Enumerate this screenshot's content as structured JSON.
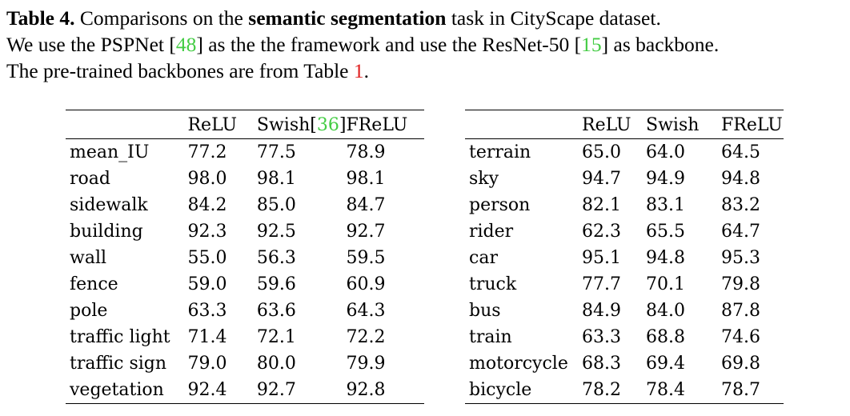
{
  "caption": {
    "label": "Table 4.",
    "line1_a": " Comparisons on the ",
    "line1_bold": "semantic segmentation",
    "line1_b": " task in CityScape dataset.",
    "line2_a": "We use the PSPNet [",
    "line2_ref1": "48",
    "line2_b": "] as the the framework and use the ResNet-50 [",
    "line2_ref2": "15",
    "line2_c": "] as backbone.",
    "line3_a": "The pre-trained backbones are from Table ",
    "line3_ref": "1",
    "line3_b": "."
  },
  "left_table": {
    "headers": [
      "",
      "ReLU",
      "Swish[",
      "36",
      "]",
      "FReLU"
    ],
    "rows": [
      {
        "label": "mean_IU",
        "relu": "77.2",
        "swish": "77.5",
        "frelu": "78.9",
        "frelu_bold": true
      },
      {
        "label": "road",
        "relu": "98.0",
        "swish": "98.1",
        "frelu": "98.1"
      },
      {
        "label": "sidewalk",
        "relu": "84.2",
        "swish": "85.0",
        "frelu": "84.7"
      },
      {
        "label": "building",
        "relu": "92.3",
        "swish": "92.5",
        "frelu": "92.7"
      },
      {
        "label": "wall",
        "relu": "55.0",
        "swish": "56.3",
        "frelu": "59.5"
      },
      {
        "label": "fence",
        "relu": "59.0",
        "swish": "59.6",
        "frelu": "60.9"
      },
      {
        "label": "pole",
        "relu": "63.3",
        "swish": "63.6",
        "frelu": "64.3"
      },
      {
        "label": "traffic light",
        "relu": "71.4",
        "swish": "72.1",
        "frelu": "72.2"
      },
      {
        "label": "traffic sign",
        "relu": "79.0",
        "swish": "80.0",
        "frelu": "79.9"
      },
      {
        "label": "vegetation",
        "relu": "92.4",
        "swish": "92.7",
        "frelu": "92.8"
      }
    ]
  },
  "right_table": {
    "headers": [
      "",
      "ReLU",
      "Swish",
      "FReLU"
    ],
    "rows": [
      {
        "label": "terrain",
        "relu": "65.0",
        "swish": "64.0",
        "frelu": "64.5"
      },
      {
        "label": "sky",
        "relu": "94.7",
        "swish": "94.9",
        "frelu": "94.8"
      },
      {
        "label": "person",
        "relu": "82.1",
        "swish": "83.1",
        "frelu": "83.2"
      },
      {
        "label": "rider",
        "relu": "62.3",
        "swish": "65.5",
        "frelu": "64.7"
      },
      {
        "label": "car",
        "relu": "95.1",
        "swish": "94.8",
        "frelu": "95.3"
      },
      {
        "label": "truck",
        "relu": "77.7",
        "swish": "70.1",
        "frelu": "79.8"
      },
      {
        "label": "bus",
        "relu": "84.9",
        "swish": "84.0",
        "frelu": "87.8"
      },
      {
        "label": "train",
        "relu": "63.3",
        "swish": "68.8",
        "frelu": "74.6"
      },
      {
        "label": "motorcycle",
        "relu": "68.3",
        "swish": "69.4",
        "frelu": "69.8"
      },
      {
        "label": "bicycle",
        "relu": "78.2",
        "swish": "78.4",
        "frelu": "78.7"
      }
    ]
  },
  "colors": {
    "citation_link": "#44cc44",
    "table_ref_link": "#e02020",
    "text": "#000000"
  }
}
